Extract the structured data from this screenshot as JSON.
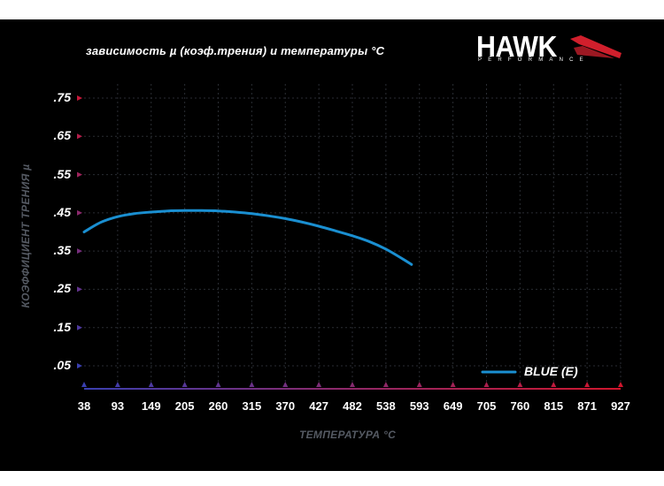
{
  "chart_data": {
    "type": "line",
    "title": "зависимость µ (коэф.трения) и температуры °С",
    "xlabel": "ТЕМПЕРАТУРА °С",
    "ylabel": "КОЭФФИЦИЕНТ ТРЕНИЯ µ",
    "x_ticks": [
      "38",
      "93",
      "149",
      "205",
      "260",
      "315",
      "370",
      "427",
      "482",
      "538",
      "593",
      "649",
      "705",
      "760",
      "815",
      "871",
      "927"
    ],
    "y_ticks": [
      ".75",
      ".65",
      ".55",
      ".45",
      ".35",
      ".25",
      ".15",
      ".05"
    ],
    "y_tick_values": [
      0.75,
      0.65,
      0.55,
      0.45,
      0.35,
      0.25,
      0.15,
      0.05
    ],
    "ylim": [
      0.0,
      0.8
    ],
    "grid": true,
    "legend_position": "bottom-right",
    "series": [
      {
        "name": "BLUE (E)",
        "color": "#1a8fd1",
        "x": [
          38,
          65,
          93,
          121,
          149,
          177,
          205,
          232,
          260,
          288,
          315,
          343,
          370,
          398,
          427,
          454,
          482,
          510,
          538,
          565,
          580
        ],
        "y": [
          0.4,
          0.425,
          0.44,
          0.448,
          0.452,
          0.455,
          0.456,
          0.456,
          0.455,
          0.452,
          0.448,
          0.442,
          0.435,
          0.426,
          0.415,
          0.403,
          0.39,
          0.375,
          0.355,
          0.33,
          0.315
        ]
      }
    ]
  },
  "brand": {
    "name": "HAWK",
    "subtitle": "PERFORMANCE",
    "accent": "#d11f2c"
  }
}
